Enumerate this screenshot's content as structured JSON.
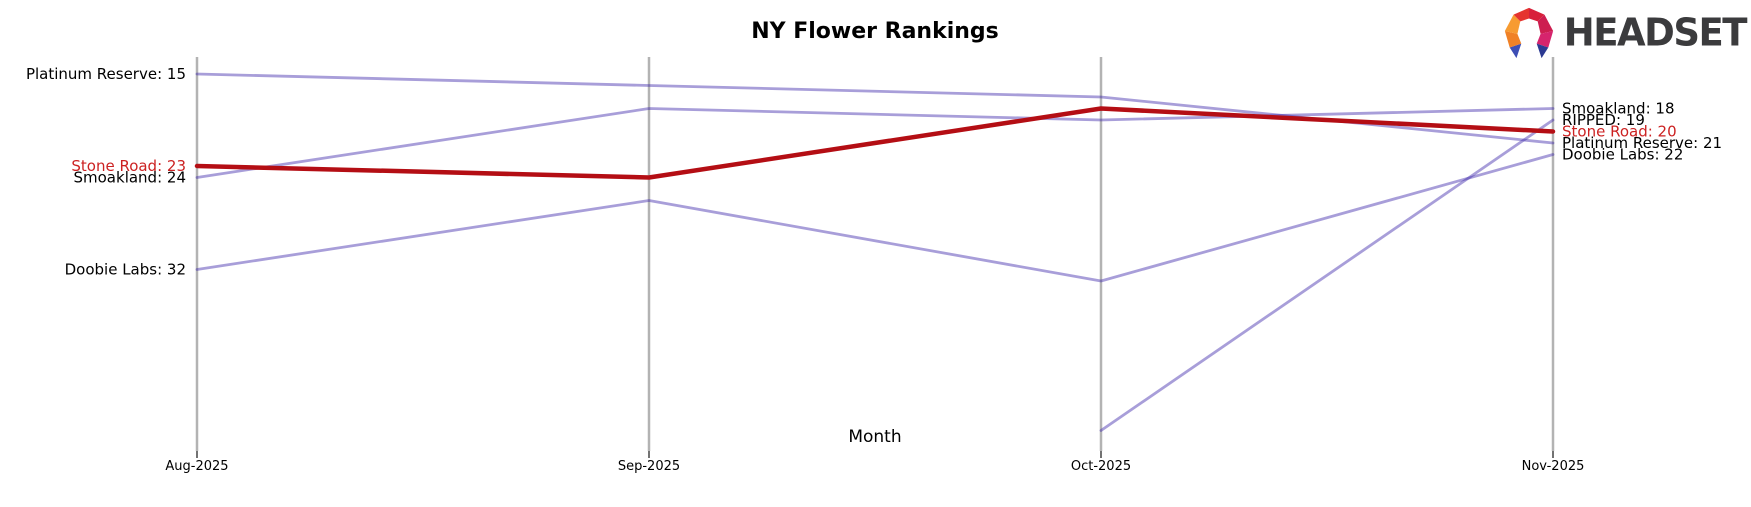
{
  "header": {
    "title": "NY Flower Rankings",
    "xlabel": "Month"
  },
  "logo": {
    "text": "HEADSET"
  },
  "colors": {
    "series_purple": "rgba(62,40,170,0.45)",
    "series_red": "#b40e14",
    "label_red": "#cc2222",
    "label_black": "#000000",
    "axis_gray": "#b3b3b3",
    "tick_dark": "#262626",
    "tick_label": "#000000"
  },
  "chart_data": {
    "type": "line",
    "variant": "bump-rank-chart",
    "title": "NY Flower Rankings",
    "xlabel": "Month",
    "ylabel": "",
    "legend": "none",
    "grid": "off",
    "y_axis": "hidden (rank scale, lower number = higher position)",
    "categories": [
      "Aug-2025",
      "Sep-2025",
      "Oct-2025",
      "Nov-2025"
    ],
    "series": [
      {
        "name": "Platinum Reserve",
        "values": [
          15,
          16,
          17,
          21
        ],
        "highlight": false
      },
      {
        "name": "Smoakland",
        "values": [
          24,
          18,
          19,
          18
        ],
        "highlight": false
      },
      {
        "name": "Doobie Labs",
        "values": [
          32,
          26,
          33,
          22
        ],
        "highlight": false
      },
      {
        "name": "RIPPED",
        "values": [
          null,
          null,
          46,
          19
        ],
        "highlight": false
      },
      {
        "name": "Stone Road",
        "values": [
          23,
          24,
          18,
          20
        ],
        "highlight": true
      }
    ],
    "left_labels": [
      {
        "text": "Platinum Reserve: 15",
        "rank": 15,
        "color": "#000000"
      },
      {
        "text": "Stone Road: 23",
        "rank": 23,
        "color": "#cc2222"
      },
      {
        "text": "Smoakland: 24",
        "rank": 24,
        "color": "#000000"
      },
      {
        "text": "Doobie Labs: 32",
        "rank": 32,
        "color": "#000000"
      }
    ],
    "right_labels": [
      {
        "text": "Smoakland: 18",
        "rank": 18,
        "color": "#000000"
      },
      {
        "text": "RIPPED: 19",
        "rank": 19,
        "color": "#000000"
      },
      {
        "text": "Stone Road: 20",
        "rank": 20,
        "color": "#cc2222"
      },
      {
        "text": "Platinum Reserve: 21",
        "rank": 21,
        "color": "#000000"
      },
      {
        "text": "Doobie Labs: 22",
        "rank": 22,
        "color": "#000000"
      }
    ]
  }
}
